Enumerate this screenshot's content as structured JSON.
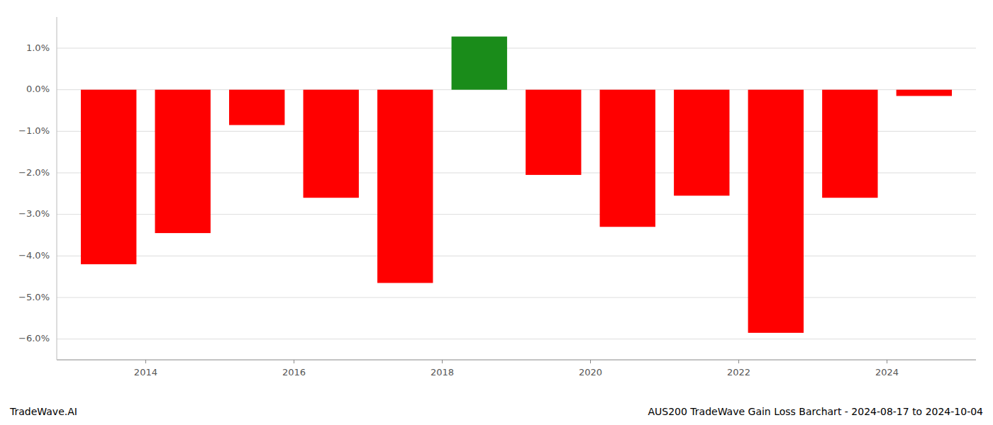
{
  "chart_data": {
    "type": "bar",
    "title": "AUS200 TradeWave Gain Loss Barchart - 2024-08-17 to 2024-10-04",
    "annotations": [
      "TradeWave.AI"
    ],
    "x": [
      2013,
      2014,
      2015,
      2016,
      2017,
      2018,
      2019,
      2020,
      2021,
      2022,
      2023,
      2024
    ],
    "values": [
      -4.2,
      -3.45,
      -0.85,
      -2.6,
      -4.65,
      1.28,
      -2.05,
      -3.3,
      -2.55,
      -5.85,
      -2.6,
      -0.15
    ],
    "colors": [
      "#ff0000",
      "#ff0000",
      "#ff0000",
      "#ff0000",
      "#ff0000",
      "#1a8c1a",
      "#ff0000",
      "#ff0000",
      "#ff0000",
      "#ff0000",
      "#ff0000",
      "#ff0000"
    ],
    "xlim": [
      2012.3,
      2024.7
    ],
    "xticks": [
      {
        "value": 2013.5,
        "label": "2014"
      },
      {
        "value": 2015.5,
        "label": "2016"
      },
      {
        "value": 2017.5,
        "label": "2018"
      },
      {
        "value": 2019.5,
        "label": "2020"
      },
      {
        "value": 2021.5,
        "label": "2022"
      },
      {
        "value": 2023.5,
        "label": "2024"
      }
    ],
    "ylim": [
      -6.5,
      1.75
    ],
    "yticks": [
      {
        "value": 1.0,
        "label": "1.0%"
      },
      {
        "value": 0.0,
        "label": "0.0%"
      },
      {
        "value": -1.0,
        "label": "−1.0%"
      },
      {
        "value": -2.0,
        "label": "−2.0%"
      },
      {
        "value": -3.0,
        "label": "−3.0%"
      },
      {
        "value": -4.0,
        "label": "−4.0%"
      },
      {
        "value": -5.0,
        "label": "−5.0%"
      },
      {
        "value": -6.0,
        "label": "−6.0%"
      }
    ],
    "grid": true
  }
}
